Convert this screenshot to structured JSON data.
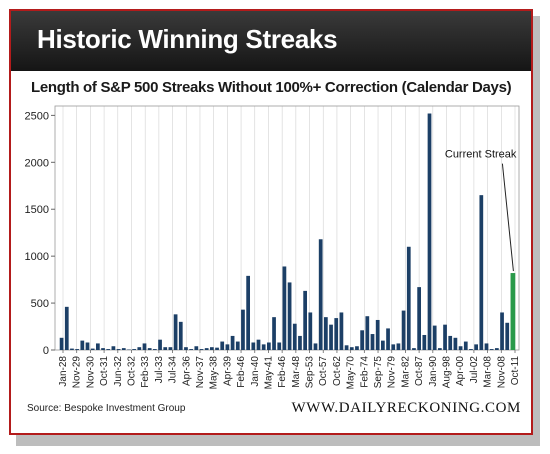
{
  "header": {
    "title": "Historic Winning Streaks"
  },
  "footer": {
    "source": "Source:  Bespoke Investment Group",
    "brand": "WWW.DAILYRECKONING.COM"
  },
  "colors": {
    "bar": "#1c3f66",
    "current_bar": "#2a9a4a",
    "header_bg": "#1f1f1f",
    "border": "#b31b1b"
  },
  "chart_data": {
    "type": "bar",
    "title": "Length of S&P 500 Streaks Without 100%+ Correction (Calendar Days)",
    "xlabel": "",
    "ylabel": "",
    "ylim": [
      0,
      2600
    ],
    "yticks": [
      0,
      500,
      1000,
      1500,
      2000,
      2500
    ],
    "grid": "vertical",
    "tick_labels": [
      "Jan-28",
      "Nov-29",
      "Nov-30",
      "Oct-31",
      "Jun-32",
      "Oct-32",
      "Feb-33",
      "Jul-33",
      "Jul-34",
      "Apr-36",
      "Nov-37",
      "May-38",
      "Apr-39",
      "Feb-46",
      "Jan-40",
      "May-41",
      "Feb-46",
      "Mar-48",
      "Sep-53",
      "Oct-57",
      "Oct-62",
      "May-70",
      "Feb-74",
      "Sep-75",
      "Nov-79",
      "Mar-82",
      "Oct-87",
      "Jan-90",
      "Aug-98",
      "Apr-00",
      "Jul-02",
      "Mar-08",
      "Nov-08",
      "Oct-11"
    ],
    "values": [
      130,
      460,
      15,
      10,
      100,
      80,
      15,
      70,
      20,
      10,
      40,
      10,
      20,
      5,
      10,
      30,
      70,
      20,
      10,
      110,
      30,
      30,
      380,
      300,
      30,
      10,
      40,
      10,
      20,
      30,
      25,
      90,
      60,
      150,
      90,
      430,
      790,
      80,
      110,
      60,
      80,
      350,
      80,
      890,
      720,
      280,
      150,
      630,
      400,
      70,
      1180,
      350,
      270,
      340,
      400,
      50,
      30,
      40,
      210,
      360,
      170,
      320,
      100,
      230,
      60,
      70,
      420,
      1100,
      20,
      670,
      160,
      2520,
      260,
      20,
      270,
      150,
      130,
      40,
      90,
      10,
      60,
      1650,
      70,
      10,
      20,
      400,
      290
    ],
    "current": {
      "label": "Current Streak",
      "value": 820
    },
    "annotations": [
      "Current Streak"
    ]
  }
}
